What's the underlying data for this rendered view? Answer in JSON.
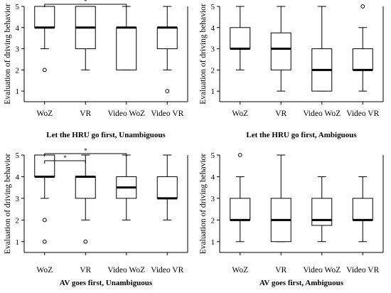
{
  "chart_data": [
    {
      "type": "box",
      "title": "Let the HRU go first, Unambiguous",
      "ylabel": "Evaluation of driving behavior",
      "ylim": [
        0.5,
        5
      ],
      "yticks": [
        1,
        2,
        3,
        4,
        5
      ],
      "categories": [
        "WoZ",
        "VR",
        "Video WoZ",
        "Video VR"
      ],
      "boxes": [
        {
          "min": 3,
          "q1": 4,
          "median": 4,
          "q3": 5,
          "max": 5,
          "outliers": [
            2
          ]
        },
        {
          "min": 2,
          "q1": 3,
          "median": 4,
          "q3": 5,
          "max": 5,
          "outliers": []
        },
        {
          "min": 2,
          "q1": 2,
          "median": 4,
          "q3": 4,
          "max": 5,
          "outliers": []
        },
        {
          "min": 2,
          "q1": 3,
          "median": 4,
          "q3": 4,
          "max": 5,
          "outliers": [
            1
          ]
        }
      ],
      "significance": [
        {
          "from": 0,
          "to": 2,
          "label": "*"
        }
      ]
    },
    {
      "type": "box",
      "title": "Let the HRU go first, Ambiguous",
      "ylabel": "Evaluation of driving behavior",
      "ylim": [
        0.5,
        5
      ],
      "yticks": [
        1,
        2,
        3,
        4,
        5
      ],
      "categories": [
        "WoZ",
        "VR",
        "Video WoZ",
        "Video VR"
      ],
      "boxes": [
        {
          "min": 2,
          "q1": 3,
          "median": 3,
          "q3": 4,
          "max": 5,
          "outliers": []
        },
        {
          "min": 1,
          "q1": 2,
          "median": 3,
          "q3": 3.75,
          "max": 5,
          "outliers": []
        },
        {
          "min": 1,
          "q1": 1,
          "median": 2,
          "q3": 3,
          "max": 5,
          "outliers": []
        },
        {
          "min": 1,
          "q1": 2,
          "median": 2,
          "q3": 3,
          "max": 4,
          "outliers": [
            5
          ]
        }
      ],
      "significance": []
    },
    {
      "type": "box",
      "title": "AV goes first, Unambiguous",
      "ylabel": "Evaluation of driving behavior",
      "ylim": [
        0.5,
        5
      ],
      "yticks": [
        1,
        2,
        3,
        4,
        5
      ],
      "categories": [
        "WoZ",
        "VR",
        "Video WoZ",
        "Video VR"
      ],
      "boxes": [
        {
          "min": 3,
          "q1": 4,
          "median": 4,
          "q3": 5,
          "max": 5,
          "outliers": [
            2,
            1
          ]
        },
        {
          "min": 2,
          "q1": 3,
          "median": 4,
          "q3": 4,
          "max": 5,
          "outliers": [
            1
          ]
        },
        {
          "min": 2,
          "q1": 3,
          "median": 3.5,
          "q3": 4,
          "max": 5,
          "outliers": []
        },
        {
          "min": 2,
          "q1": 3,
          "median": 3,
          "q3": 4,
          "max": 5,
          "outliers": []
        }
      ],
      "significance": [
        {
          "from": 0,
          "to": 1,
          "label": "*"
        },
        {
          "from": 0,
          "to": 2,
          "label": "*"
        }
      ]
    },
    {
      "type": "box",
      "title": "AV goes first, Ambiguous",
      "ylabel": "Evaluation of driving behavior",
      "ylim": [
        0.5,
        5
      ],
      "yticks": [
        1,
        2,
        3,
        4,
        5
      ],
      "categories": [
        "WoZ",
        "VR",
        "Video WoZ",
        "Video VR"
      ],
      "boxes": [
        {
          "min": 1,
          "q1": 2,
          "median": 2,
          "q3": 3,
          "max": 4,
          "outliers": [
            5
          ]
        },
        {
          "min": 1,
          "q1": 1,
          "median": 2,
          "q3": 3,
          "max": 5,
          "outliers": []
        },
        {
          "min": 1,
          "q1": 1.75,
          "median": 2,
          "q3": 3,
          "max": 4,
          "outliers": []
        },
        {
          "min": 1,
          "q1": 2,
          "median": 2,
          "q3": 3,
          "max": 4,
          "outliers": []
        }
      ],
      "significance": []
    }
  ]
}
